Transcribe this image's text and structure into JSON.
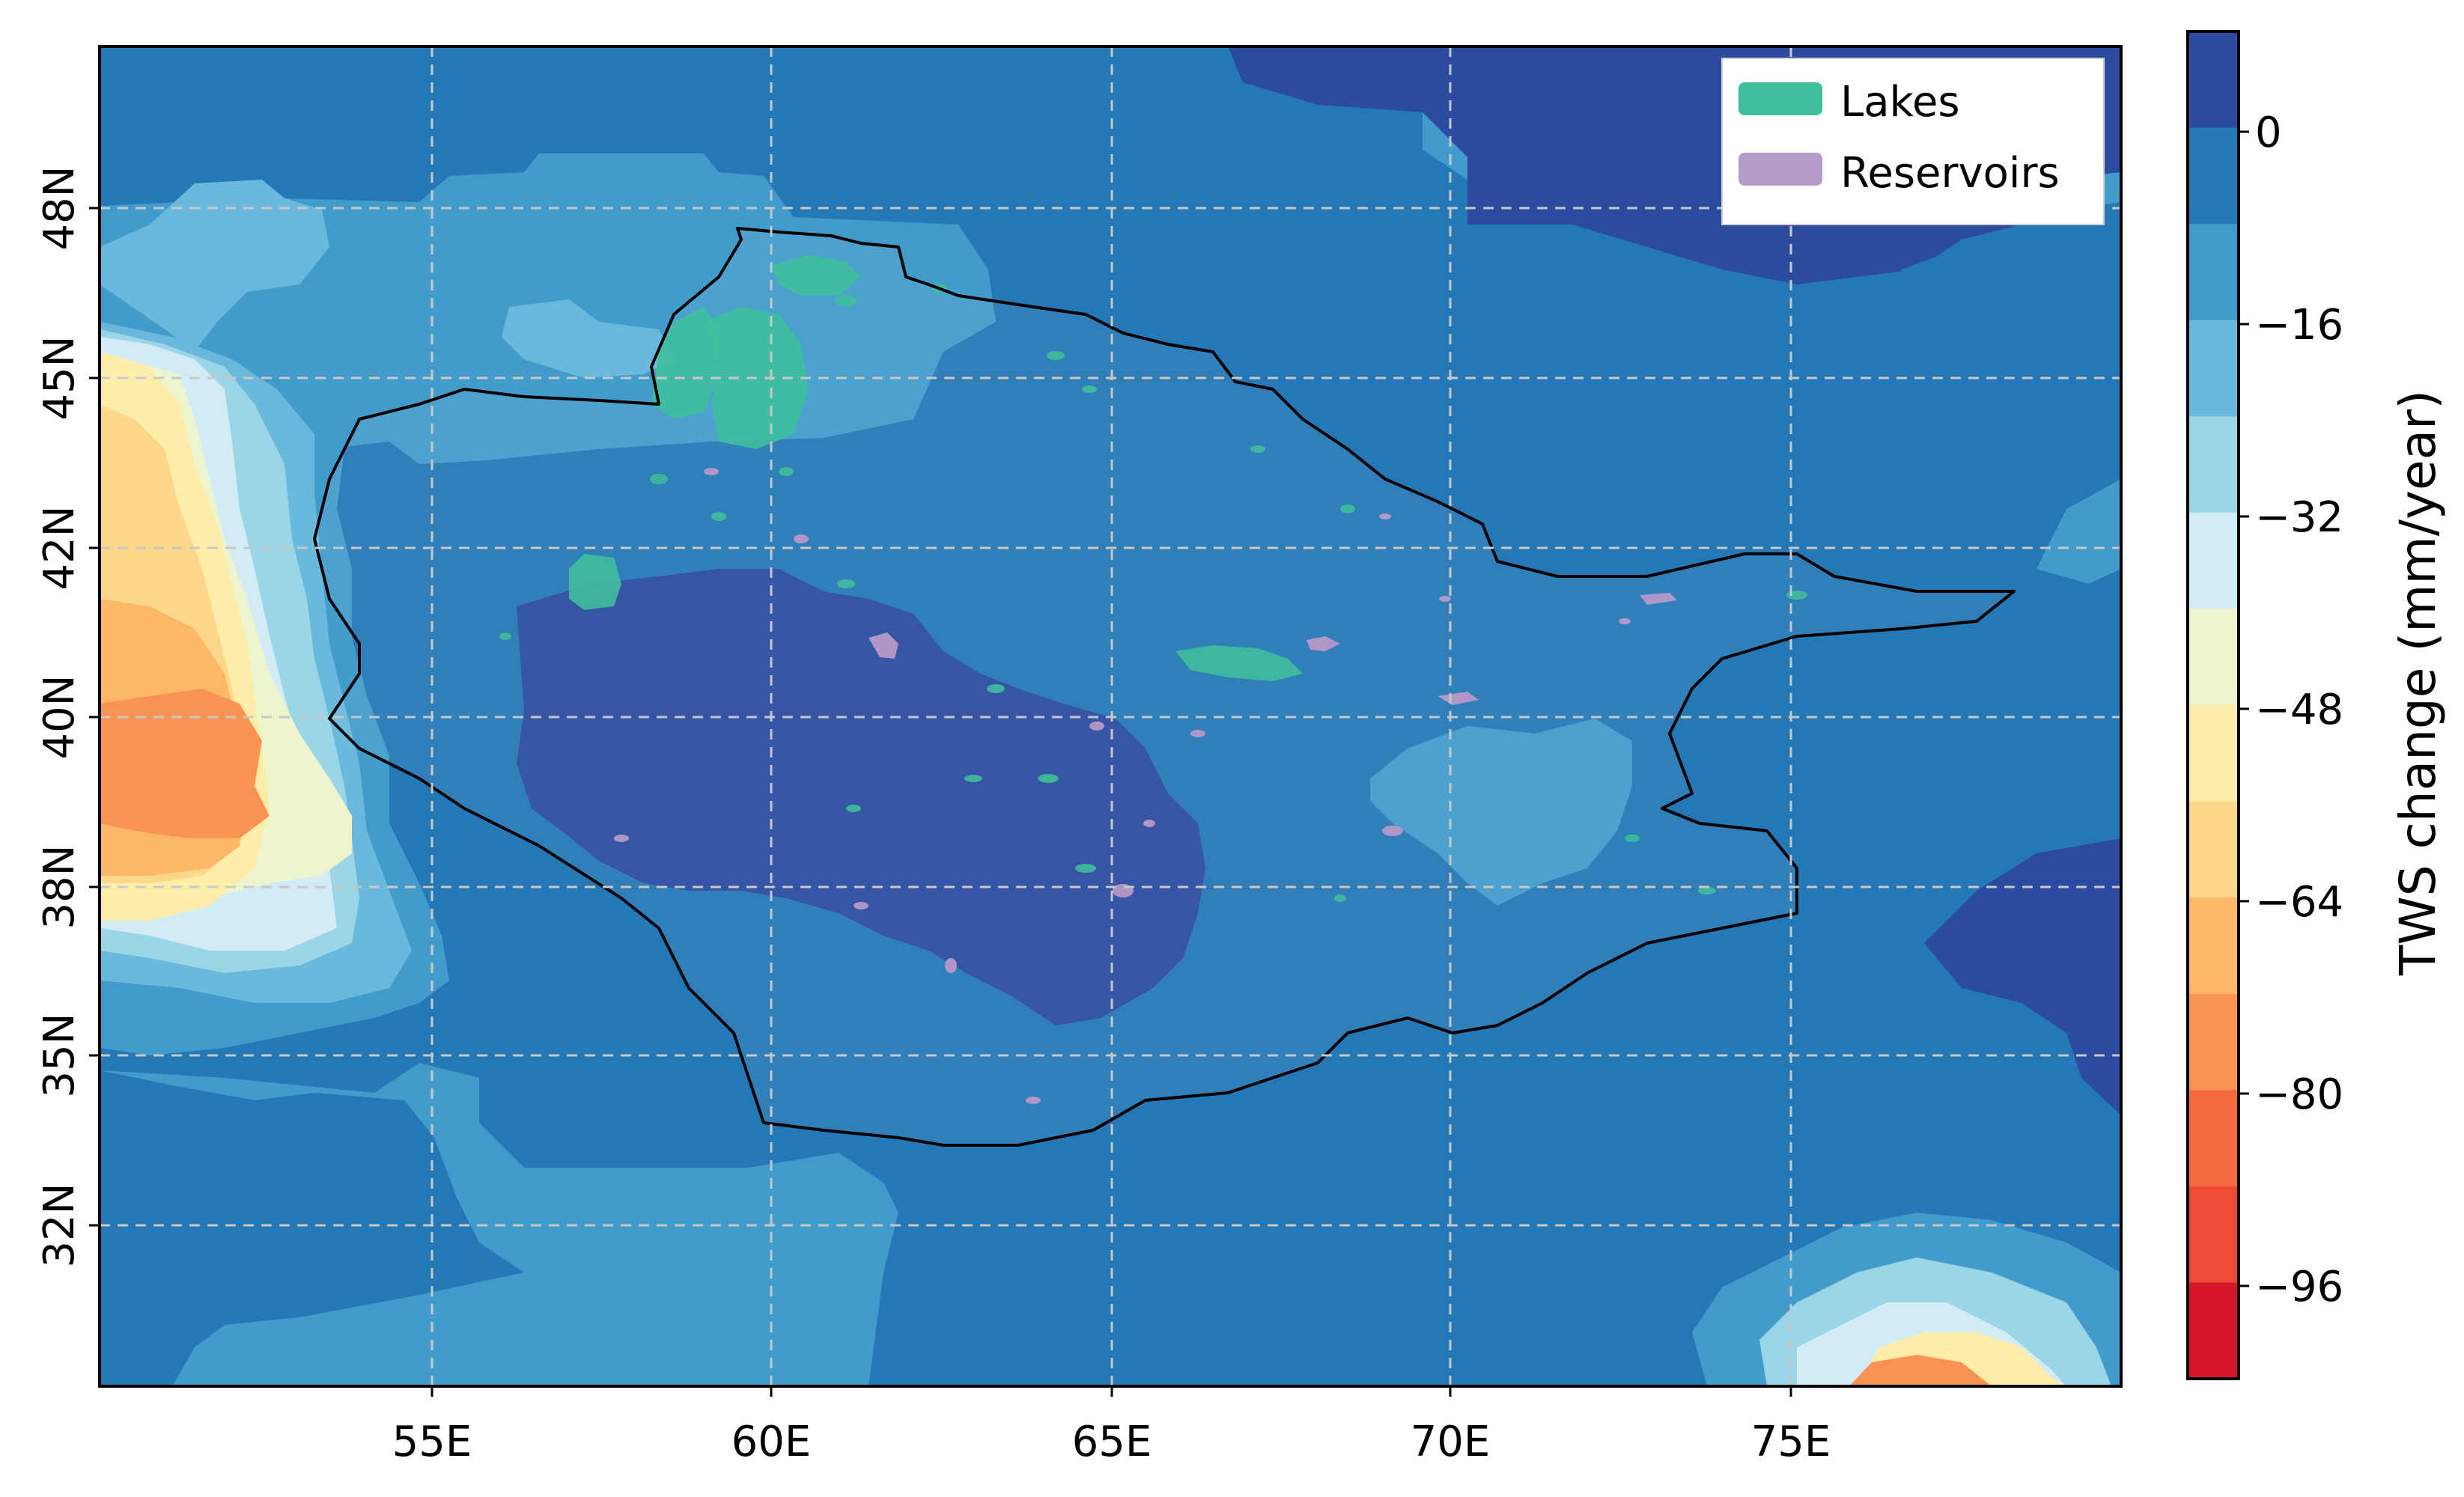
{
  "map": {
    "x_ticks": [
      "55E",
      "60E",
      "65E",
      "70E",
      "75E"
    ],
    "y_ticks": [
      "48N",
      "45N",
      "42N",
      "40N",
      "38N",
      "35N",
      "32N"
    ],
    "legend": {
      "lakes": {
        "label": "Lakes",
        "color": "#3fbf9c"
      },
      "reservoirs": {
        "label": "Reservoirs",
        "color": "#b69ac9"
      }
    },
    "background_colors": {
      "deep_blue": "#2a4b9f",
      "blue": "#2478b5",
      "mid_blue": "#419ccc",
      "light_blue": "#6ab8dc",
      "pale_blue": "#9bd6e8",
      "very_pale_blue": "#d2ecf6",
      "cream": "#edf5cf",
      "pale_yellow": "#fdeda8",
      "yellow": "#fdd78a",
      "light_orange": "#fcb868",
      "orange": "#f99352",
      "red_orange": "#f26a3d"
    }
  },
  "colorbar": {
    "title": "TWS change (mm/year)",
    "tick_labels": [
      "0",
      "−16",
      "−32",
      "−48",
      "−64",
      "−80",
      "−96"
    ],
    "colors_top_to_bottom": [
      "#2a4b9f",
      "#2478b5",
      "#419ccc",
      "#6ab8dc",
      "#9bd6e8",
      "#d2ecf6",
      "#edf5cf",
      "#fdeda8",
      "#fdd78a",
      "#fcb868",
      "#f99352",
      "#f26a3d",
      "#ee4a36",
      "#d7152a"
    ]
  }
}
